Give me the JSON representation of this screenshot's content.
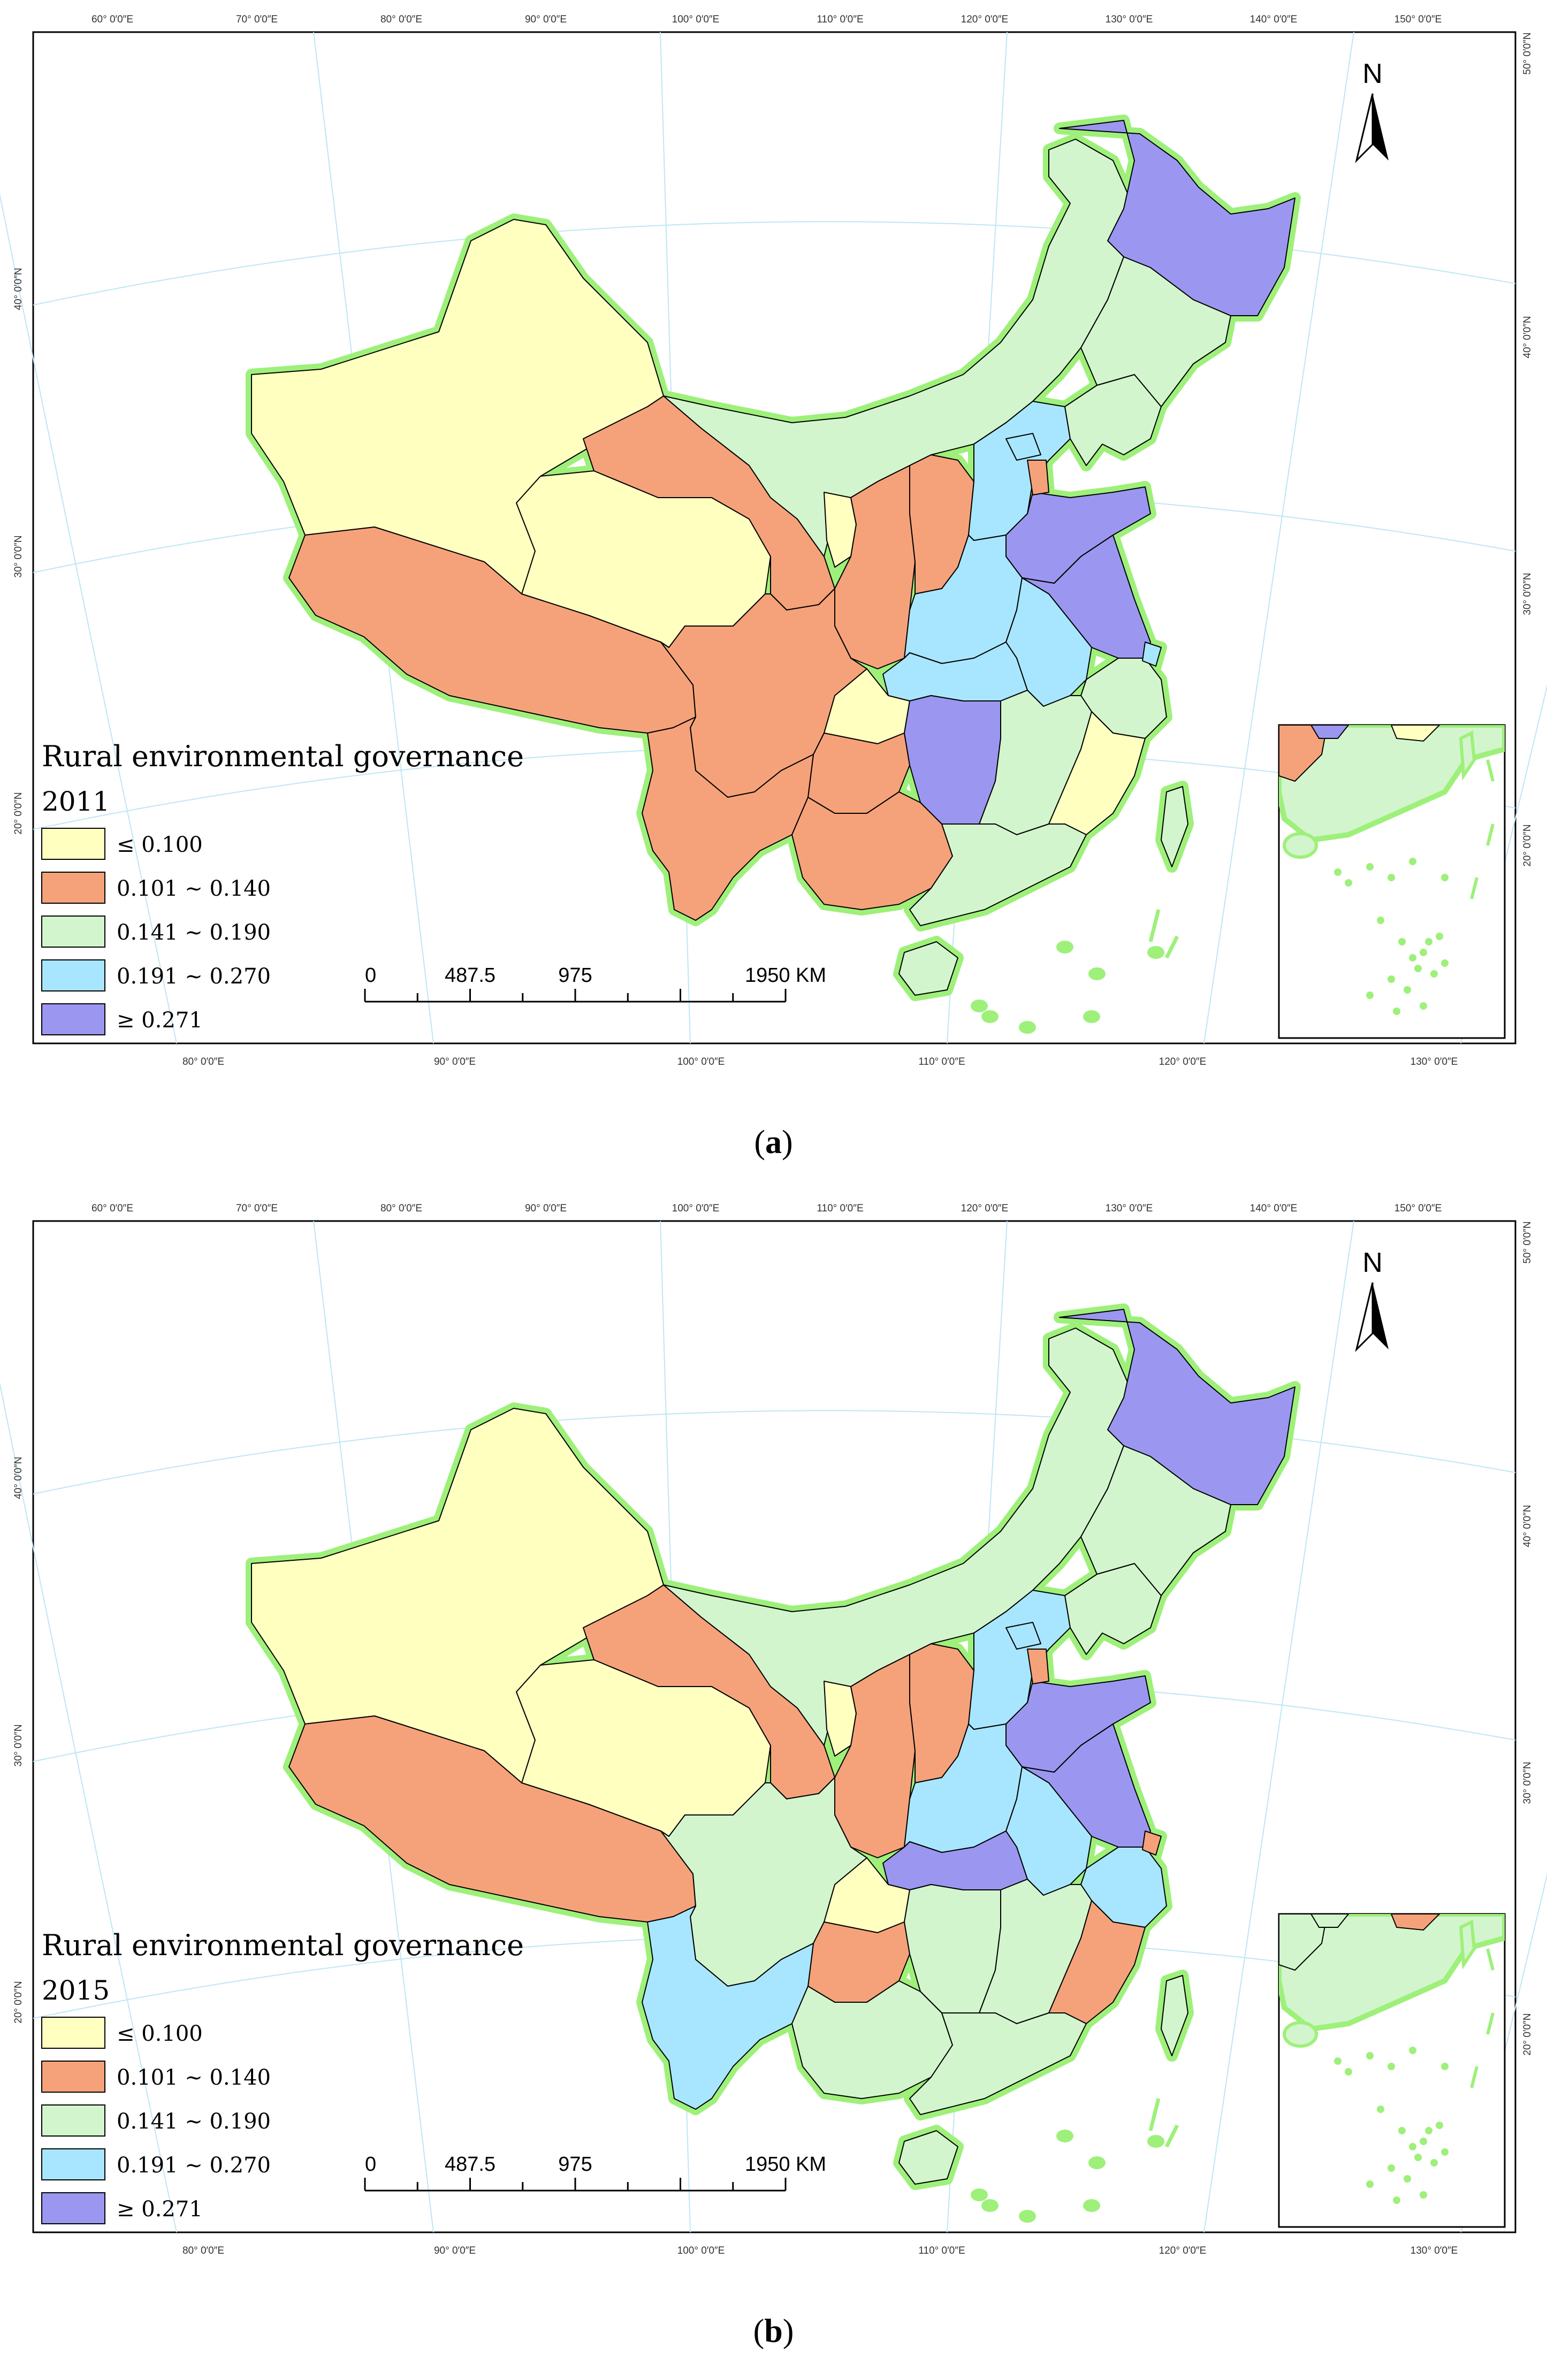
{
  "figure": {
    "panels": [
      {
        "id": "a",
        "caption_letter": "a",
        "legend_title": "Rural environmental governance",
        "year": "2011",
        "regions": {
          "xinjiang": "c1",
          "tibet": "c2",
          "qinghai": "c1",
          "gansu": "c2",
          "inner_mongolia": "c3",
          "heilongjiang": "c5",
          "jilin": "c3",
          "liaoning": "c3",
          "hebei": "c4",
          "beijing": "c4",
          "tianjin": "c2",
          "shandong": "c5",
          "shanxi": "c2",
          "shaanxi": "c2",
          "ningxia": "c1",
          "henan": "c4",
          "jiangsu": "c5",
          "anhui": "c4",
          "shanghai": "c4",
          "zhejiang": "c3",
          "hubei": "c4",
          "chongqing": "c1",
          "sichuan": "c2",
          "guizhou": "c2",
          "yunnan": "c2",
          "hunan": "c5",
          "jiangxi": "c3",
          "fujian": "c1",
          "guangxi": "c2",
          "guangdong": "c3",
          "hainan": "c3",
          "taiwan": "c3"
        }
      },
      {
        "id": "b",
        "caption_letter": "b",
        "legend_title": "Rural environmental governance",
        "year": "2015",
        "regions": {
          "xinjiang": "c1",
          "tibet": "c2",
          "qinghai": "c1",
          "gansu": "c2",
          "inner_mongolia": "c3",
          "heilongjiang": "c5",
          "jilin": "c3",
          "liaoning": "c3",
          "hebei": "c4",
          "beijing": "c4",
          "tianjin": "c2",
          "shandong": "c5",
          "shanxi": "c2",
          "shaanxi": "c2",
          "ningxia": "c1",
          "henan": "c4",
          "jiangsu": "c5",
          "anhui": "c4",
          "shanghai": "c2",
          "zhejiang": "c4",
          "hubei": "c5",
          "chongqing": "c1",
          "sichuan": "c3",
          "guizhou": "c2",
          "yunnan": "c4",
          "hunan": "c3",
          "jiangxi": "c3",
          "fujian": "c2",
          "guangxi": "c3",
          "guangdong": "c3",
          "hainan": "c3",
          "taiwan": "c3"
        }
      }
    ],
    "legend_classes": [
      {
        "key": "c1",
        "label": "≤ 0.100",
        "color": "#ffffc0"
      },
      {
        "key": "c2",
        "label": "0.101 ~ 0.140",
        "color": "#f5a27a"
      },
      {
        "key": "c3",
        "label": "0.141 ~ 0.190",
        "color": "#d2f5cd"
      },
      {
        "key": "c4",
        "label": "0.191 ~ 0.270",
        "color": "#a8e6ff"
      },
      {
        "key": "c5",
        "label": "≥ 0.271",
        "color": "#9b97f0"
      }
    ],
    "scale_bar": {
      "labels": [
        "0",
        "487.5",
        "975",
        "1950 KM"
      ]
    },
    "north_label": "N",
    "graticule": {
      "top_labels": [
        "60° 0′0″E",
        "70° 0′0″E",
        "80° 0′0″E",
        "90° 0′0″E",
        "100° 0′0″E",
        "110° 0′0″E",
        "120° 0′0″E",
        "130° 0′0″E",
        "140° 0′0″E",
        "150° 0′0″E"
      ],
      "bottom_labels": [
        "80° 0′0″E",
        "90° 0′0″E",
        "100° 0′0″E",
        "110° 0′0″E",
        "120° 0′0″E",
        "130° 0′0″E"
      ],
      "left_labels": [
        "40° 0′0″N",
        "30° 0′0″N",
        "20° 0′0″N"
      ],
      "right_labels": [
        "50° 0′0″N",
        "40° 0′0″N",
        "30° 0′0″N",
        "20° 0′0″N"
      ]
    },
    "colors": {
      "coast": "#9ef07a",
      "border": "#000000",
      "grid": "#bfe6f5"
    }
  }
}
